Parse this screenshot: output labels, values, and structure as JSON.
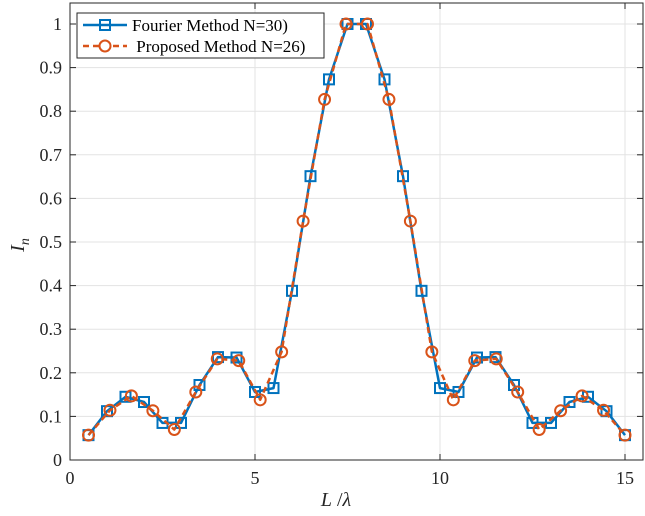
{
  "chart_data": {
    "type": "line",
    "title": "",
    "xlabel": "L / λ",
    "ylabel": "I_n",
    "xlim": [
      0,
      15
    ],
    "ylim": [
      0,
      1.05
    ],
    "xticks": [
      0,
      5,
      10,
      15
    ],
    "xtick_labels": [
      "0",
      "5",
      "10",
      "15"
    ],
    "yticks": [
      0,
      0.1,
      0.2,
      0.3,
      0.4,
      0.5,
      0.6,
      0.7,
      0.8,
      0.9,
      1
    ],
    "ytick_labels": [
      "0",
      "0.1",
      "0.2",
      "0.3",
      "0.4",
      "0.5",
      "0.6",
      "0.7",
      "0.8",
      "0.9",
      "1"
    ],
    "grid": true,
    "legend_position": "upper left",
    "series": [
      {
        "name": "Fourier Method N=30)",
        "color": "#0072BD",
        "line_style": "solid",
        "marker": "square",
        "x": [
          0.5,
          1.0,
          1.5,
          2.0,
          2.5,
          3.0,
          3.5,
          4.0,
          4.5,
          5.0,
          5.5,
          6.0,
          6.5,
          7.0,
          7.5,
          8.0,
          8.5,
          9.0,
          9.5,
          10.0,
          10.5,
          11.0,
          11.5,
          12.0,
          12.5,
          13.0,
          13.5,
          14.0,
          14.5,
          15.0
        ],
        "values": [
          0.057,
          0.112,
          0.145,
          0.133,
          0.085,
          0.085,
          0.172,
          0.236,
          0.235,
          0.156,
          0.165,
          0.388,
          0.651,
          0.873,
          1.0,
          1.0,
          0.873,
          0.651,
          0.388,
          0.165,
          0.156,
          0.235,
          0.236,
          0.172,
          0.085,
          0.085,
          0.133,
          0.145,
          0.112,
          0.057
        ]
      },
      {
        "name": "Proposed Method N=26)",
        "color": "#D95319",
        "line_style": "dashed",
        "marker": "circle",
        "x": [
          0.5,
          1.08,
          1.66,
          2.24,
          2.82,
          3.4,
          3.98,
          4.56,
          5.14,
          5.72,
          6.3,
          6.88,
          7.46,
          8.04,
          8.62,
          9.2,
          9.78,
          10.36,
          10.94,
          11.52,
          12.1,
          12.68,
          13.26,
          13.84,
          14.42,
          15.0
        ],
        "values": [
          0.057,
          0.114,
          0.147,
          0.113,
          0.07,
          0.156,
          0.232,
          0.228,
          0.138,
          0.248,
          0.548,
          0.827,
          1.0,
          1.0,
          0.827,
          0.548,
          0.248,
          0.138,
          0.228,
          0.232,
          0.156,
          0.07,
          0.113,
          0.147,
          0.114,
          0.057
        ]
      }
    ]
  },
  "legend": {
    "items": [
      {
        "label": "Fourier Method N=30)"
      },
      {
        "label": " Proposed Method N=26)"
      }
    ]
  },
  "axes": {
    "xlabel_main": "L",
    "xlabel_sep": " /",
    "xlabel_sym": "λ",
    "ylabel_main": "I",
    "ylabel_sub": "n"
  }
}
